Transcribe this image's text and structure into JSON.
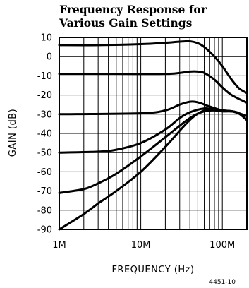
{
  "chart_data": {
    "type": "line",
    "title_lines": [
      "Frequency Response for",
      "Various Gain Settings"
    ],
    "xlabel": "FREQUENCY (Hz)",
    "ylabel": "GAIN (dB)",
    "x_scale": "log",
    "xlim": [
      1000000,
      200000000
    ],
    "ylim": [
      -90,
      10
    ],
    "x_ticks": [
      {
        "value": 1000000,
        "label": "1M"
      },
      {
        "value": 10000000,
        "label": "10M"
      },
      {
        "value": 100000000,
        "label": "100M"
      }
    ],
    "y_ticks": [
      10,
      0,
      -10,
      -20,
      -30,
      -40,
      -50,
      -60,
      -70,
      -80,
      -90
    ],
    "y_tick_labels": [
      "10",
      "0",
      "-10",
      "-20",
      "-30",
      "-40",
      "-50",
      "-60",
      "-70",
      "-80",
      "-90"
    ],
    "grid": true,
    "figure_number": "4451-10",
    "series": [
      {
        "values": [
          [
            1000000,
            6
          ],
          [
            3000000,
            6
          ],
          [
            10000000,
            6.5
          ],
          [
            20000000,
            7.2
          ],
          [
            30000000,
            7.8
          ],
          [
            40000000,
            8
          ],
          [
            50000000,
            7
          ],
          [
            60000000,
            5
          ],
          [
            80000000,
            0
          ],
          [
            100000000,
            -5
          ],
          [
            130000000,
            -12
          ],
          [
            160000000,
            -16.5
          ],
          [
            200000000,
            -19
          ]
        ]
      },
      {
        "values": [
          [
            1000000,
            -9
          ],
          [
            5000000,
            -9
          ],
          [
            20000000,
            -9
          ],
          [
            30000000,
            -8.5
          ],
          [
            40000000,
            -7.8
          ],
          [
            50000000,
            -7.8
          ],
          [
            60000000,
            -8.5
          ],
          [
            80000000,
            -12
          ],
          [
            100000000,
            -16
          ],
          [
            130000000,
            -20
          ],
          [
            200000000,
            -24
          ]
        ]
      },
      {
        "values": [
          [
            1000000,
            -30
          ],
          [
            10000000,
            -29.5
          ],
          [
            20000000,
            -28
          ],
          [
            30000000,
            -25
          ],
          [
            40000000,
            -23.5
          ],
          [
            50000000,
            -23.8
          ],
          [
            70000000,
            -26
          ],
          [
            100000000,
            -28
          ],
          [
            130000000,
            -28.5
          ],
          [
            160000000,
            -29.5
          ],
          [
            200000000,
            -31
          ]
        ]
      },
      {
        "values": [
          [
            1000000,
            -50
          ],
          [
            3000000,
            -49.5
          ],
          [
            5000000,
            -48.5
          ],
          [
            10000000,
            -45
          ],
          [
            20000000,
            -38
          ],
          [
            30000000,
            -32
          ],
          [
            40000000,
            -29
          ],
          [
            60000000,
            -27
          ],
          [
            80000000,
            -27.5
          ],
          [
            100000000,
            -28
          ],
          [
            150000000,
            -29
          ],
          [
            200000000,
            -33
          ]
        ]
      },
      {
        "values": [
          [
            1000000,
            -71
          ],
          [
            2000000,
            -69
          ],
          [
            3000000,
            -66
          ],
          [
            5000000,
            -61
          ],
          [
            10000000,
            -52
          ],
          [
            20000000,
            -42
          ],
          [
            40000000,
            -32
          ],
          [
            60000000,
            -28.5
          ],
          [
            80000000,
            -28
          ],
          [
            100000000,
            -28.5
          ],
          [
            150000000,
            -29
          ],
          [
            200000000,
            -33
          ]
        ]
      },
      {
        "values": [
          [
            1000000,
            -90
          ],
          [
            2000000,
            -82
          ],
          [
            3000000,
            -76.5
          ],
          [
            5000000,
            -70
          ],
          [
            10000000,
            -60
          ],
          [
            20000000,
            -47
          ],
          [
            40000000,
            -33
          ],
          [
            60000000,
            -28
          ],
          [
            80000000,
            -27.5
          ],
          [
            100000000,
            -28
          ],
          [
            150000000,
            -29
          ],
          [
            200000000,
            -33
          ]
        ]
      }
    ]
  }
}
